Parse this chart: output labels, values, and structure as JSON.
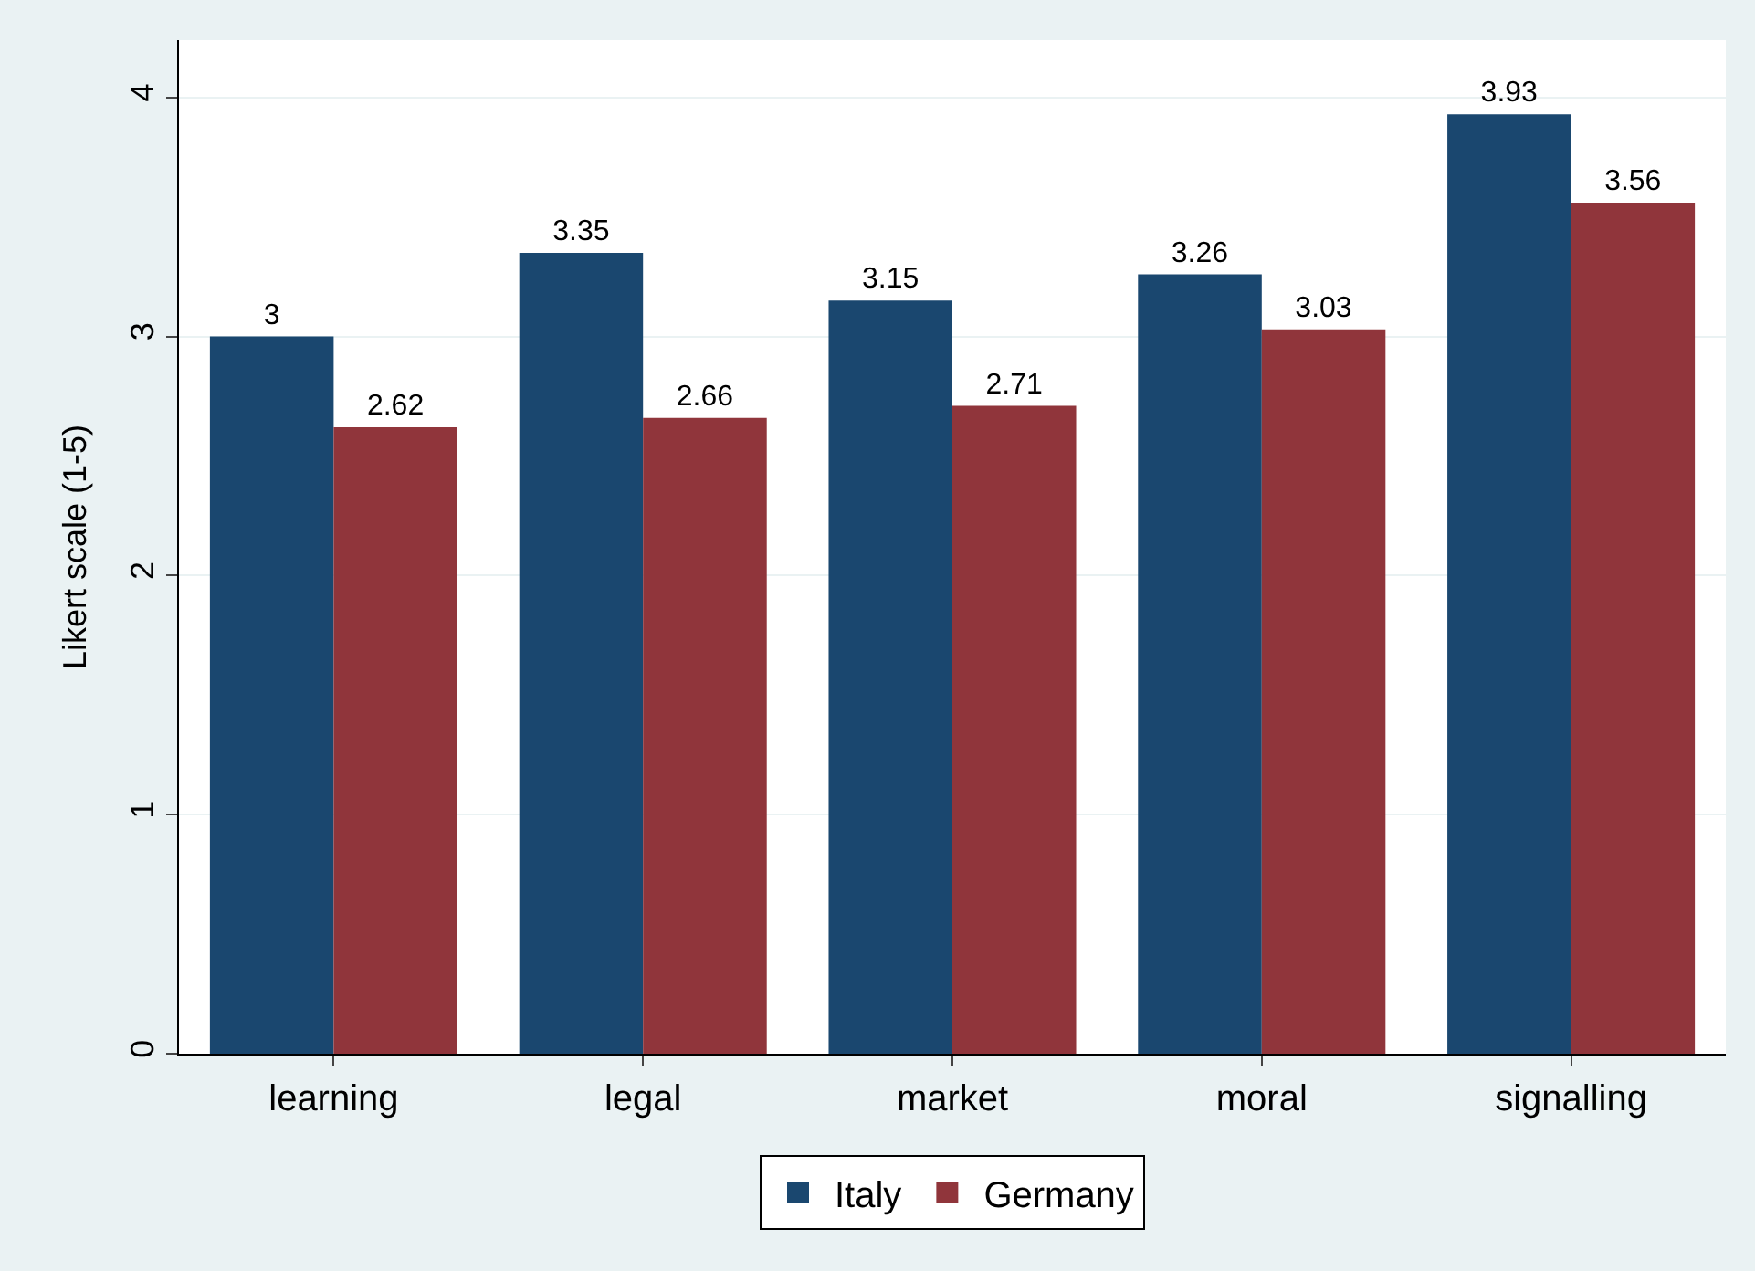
{
  "chart_data": {
    "type": "bar",
    "ylabel": "Likert scale (1-5)",
    "categories": [
      "learning",
      "legal",
      "market",
      "moral",
      "signalling"
    ],
    "series": [
      {
        "name": "Italy",
        "color": "#1a476f",
        "values": [
          3,
          3.35,
          3.15,
          3.26,
          3.93
        ]
      },
      {
        "name": "Germany",
        "color": "#90353b",
        "values": [
          2.62,
          2.66,
          2.71,
          3.03,
          3.56
        ]
      }
    ],
    "ylim": [
      0,
      4.24
    ],
    "yticks": [
      0,
      1,
      2,
      3,
      4
    ],
    "grid": "y",
    "legend": "bottom",
    "data_labels": true
  }
}
